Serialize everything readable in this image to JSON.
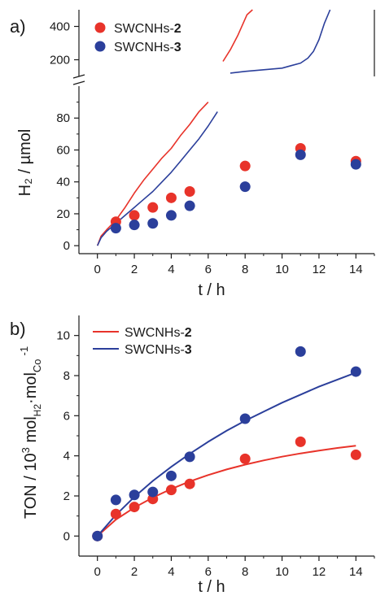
{
  "chart_data": [
    {
      "panel_label": "a)",
      "type": "scatter",
      "xlabel": "t / h",
      "ylabel": "H₂ / µmol",
      "xlim": [
        -1,
        15
      ],
      "xticks": [
        "0",
        "2",
        "4",
        "6",
        "8",
        "10",
        "12",
        "14"
      ],
      "y_axis_break": true,
      "ylim_lower": [
        -5,
        100
      ],
      "yticks_lower": [
        "0",
        "20",
        "40",
        "60",
        "80"
      ],
      "ylim_upper": [
        100,
        500
      ],
      "yticks_upper": [
        "200",
        "400"
      ],
      "colors": {
        "swcnhs2": "#e8332a",
        "swcnhs3": "#2b3f9b"
      },
      "series": [
        {
          "name": "SWCNHs-2",
          "label_parts": [
            "SWCNHs-",
            "2"
          ],
          "x": [
            1,
            2,
            3,
            4,
            5,
            8,
            11,
            14
          ],
          "y": [
            15,
            19,
            24,
            30,
            34,
            50,
            61,
            53
          ]
        },
        {
          "name": "SWCNHs-3",
          "label_parts": [
            "SWCNHs-",
            "3"
          ],
          "x": [
            1,
            2,
            3,
            4,
            5,
            8,
            11,
            14
          ],
          "y": [
            11,
            13,
            14,
            19,
            25,
            37,
            57,
            51
          ]
        }
      ],
      "traces": [
        {
          "series": "SWCNHs-2",
          "segments": [
            {
              "x": [
                0,
                0.2,
                0.5,
                1,
                1.5,
                2,
                2.5,
                3,
                3.5,
                4,
                4.5,
                5,
                5.5,
                6
              ],
              "y": [
                0,
                6,
                10,
                16,
                24,
                33,
                41,
                48,
                55,
                61,
                69,
                76,
                84,
                90
              ]
            },
            {
              "x": [
                6.8,
                7.2,
                7.6,
                7.9,
                8.1,
                8.4
              ],
              "y": [
                190,
                260,
                345,
                420,
                470,
                520
              ]
            }
          ]
        },
        {
          "series": "SWCNHs-3",
          "segments": [
            {
              "x": [
                0,
                0.2,
                0.5,
                1,
                1.5,
                2,
                2.5,
                3,
                3.5,
                4,
                4.5,
                5,
                5.5,
                6,
                6.5
              ],
              "y": [
                0,
                5,
                9,
                14,
                19,
                24,
                29,
                34,
                40,
                46,
                53,
                60,
                67,
                75,
                84
              ]
            },
            {
              "x": [
                7.2,
                8,
                9,
                10,
                10.5,
                11,
                11.4,
                11.7,
                12,
                12.3,
                12.6
              ],
              "y": [
                120,
                130,
                140,
                150,
                165,
                180,
                210,
                250,
                320,
                420,
                520
              ]
            }
          ]
        }
      ]
    },
    {
      "panel_label": "b)",
      "type": "scatter",
      "xlabel": "t / h",
      "ylabel_parts": [
        "TON / 10",
        "3",
        " mol",
        "H2",
        "·mol",
        "Co",
        "-1"
      ],
      "xlim": [
        -1,
        15
      ],
      "ylim": [
        -1,
        11
      ],
      "xticks": [
        "0",
        "2",
        "4",
        "6",
        "8",
        "10",
        "12",
        "14"
      ],
      "yticks": [
        "0",
        "2",
        "4",
        "6",
        "8",
        "10"
      ],
      "series": [
        {
          "name": "SWCNHs-2",
          "label_parts": [
            "SWCNHs-",
            "2"
          ],
          "x": [
            0,
            1,
            2,
            3,
            4,
            5,
            8,
            11,
            14
          ],
          "y": [
            0,
            1.1,
            1.45,
            1.85,
            2.3,
            2.6,
            3.85,
            4.7,
            4.05
          ]
        },
        {
          "name": "SWCNHs-3",
          "label_parts": [
            "SWCNHs-",
            "3"
          ],
          "x": [
            0,
            1,
            2,
            3,
            4,
            5,
            8,
            11,
            14
          ],
          "y": [
            0,
            1.8,
            2.05,
            2.2,
            3.0,
            3.95,
            5.85,
            9.2,
            8.2
          ]
        }
      ],
      "fit_curves": [
        {
          "series": "SWCNHs-2",
          "x": [
            0,
            1,
            2,
            3,
            4,
            5,
            6,
            7,
            8,
            9,
            10,
            11,
            12,
            13,
            14
          ],
          "y": [
            0,
            0.82,
            1.42,
            1.92,
            2.35,
            2.72,
            3.04,
            3.32,
            3.56,
            3.77,
            3.96,
            4.12,
            4.26,
            4.39,
            4.5
          ]
        },
        {
          "series": "SWCNHs-3",
          "x": [
            0,
            1,
            2,
            3,
            4,
            5,
            6,
            7,
            8,
            9,
            10,
            11,
            12,
            13,
            14
          ],
          "y": [
            0,
            1.05,
            1.95,
            2.75,
            3.45,
            4.1,
            4.7,
            5.25,
            5.75,
            6.2,
            6.65,
            7.05,
            7.45,
            7.8,
            8.15
          ]
        }
      ]
    }
  ]
}
